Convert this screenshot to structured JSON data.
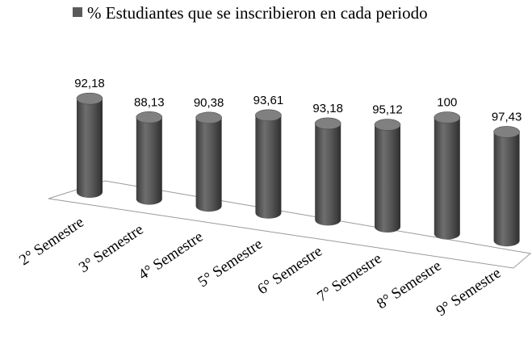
{
  "chart_data": {
    "type": "bar",
    "title": "",
    "xlabel": "",
    "ylabel": "",
    "categories": [
      "2° Semestre",
      "3° Semestre",
      "4° Semestre",
      "5° Semestre",
      "6° Semestre",
      "7° Semestre",
      "8° Semestre",
      "9° Semestre"
    ],
    "series": [
      {
        "name": "% Estudiantes que se inscribieron en cada periodo",
        "values": [
          92.18,
          88.13,
          90.38,
          93.61,
          93.18,
          95.12,
          100,
          97.43
        ],
        "value_labels": [
          "92,18",
          "88,13",
          "90,38",
          "93,61",
          "93,18",
          "95,12",
          "100",
          "97,43"
        ],
        "color": "#5a5a5a"
      }
    ],
    "ylim": [
      60,
      100
    ],
    "grid": false,
    "legend": "top-center",
    "bar_style": "3d-cylinder"
  }
}
